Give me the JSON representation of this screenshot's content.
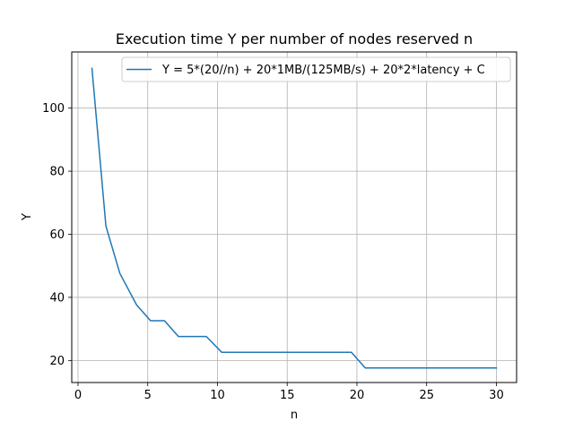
{
  "chart_data": {
    "type": "line",
    "title": "Execution time Y per number of nodes reserved n",
    "xlabel": "n",
    "ylabel": "Y",
    "xlim": [
      -0.45,
      31.45
    ],
    "ylim": [
      13.0,
      117.8
    ],
    "xticks": [
      0,
      5,
      10,
      15,
      20,
      25,
      30
    ],
    "yticks": [
      20,
      40,
      60,
      80,
      100
    ],
    "grid": true,
    "legend_position": "top-right",
    "series": [
      {
        "name": "Y = 5*(20//n) + 20*1MB/(125MB/s) + 20*2*latency + C",
        "color": "#1f77b4",
        "x": [
          1.0,
          2.0,
          3.0,
          4.2,
          5.2,
          6.2,
          7.2,
          8.2,
          9.2,
          10.3,
          11.3,
          12.3,
          13.3,
          14.3,
          15.3,
          16.3,
          17.3,
          18.3,
          19.6,
          20.6,
          21.6,
          22.6,
          23.6,
          24.6,
          25.6,
          26.6,
          27.6,
          28.6,
          30.0
        ],
        "y": [
          112.6,
          62.6,
          47.6,
          37.6,
          32.6,
          32.6,
          27.6,
          27.6,
          27.6,
          22.6,
          22.6,
          22.6,
          22.6,
          22.6,
          22.6,
          22.6,
          22.6,
          22.6,
          22.6,
          17.6,
          17.6,
          17.6,
          17.6,
          17.6,
          17.6,
          17.6,
          17.6,
          17.6,
          17.6
        ]
      }
    ]
  }
}
